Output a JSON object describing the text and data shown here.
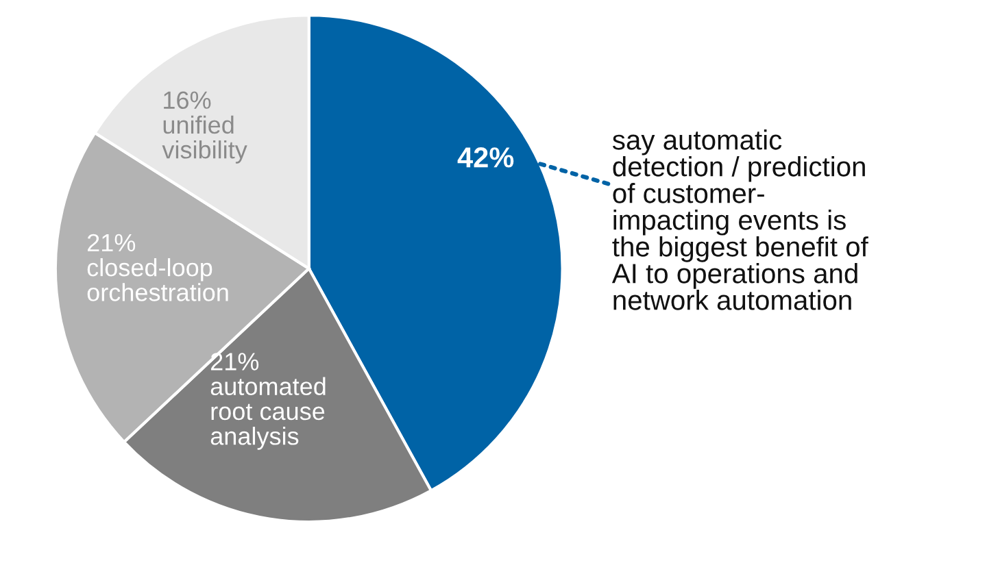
{
  "chart_data": {
    "type": "pie",
    "categories": [
      null,
      "automated\nroot cause\nanalysis",
      "closed-loop\norchestration",
      "unified\nvisibility"
    ],
    "values": [
      42,
      21,
      21,
      16
    ],
    "value_labels": [
      "42%",
      "21%",
      "21%",
      "16%"
    ],
    "colors": [
      "#0063a6",
      "#7f7f7f",
      "#b3b3b3",
      "#e8e8e8"
    ],
    "annotations": [
      "say automatic\ndetection / prediction\nof customer-\nimpacting events is\nthe biggest benefit of\nAI to operations and\nnetwork automation"
    ],
    "legend": false
  }
}
